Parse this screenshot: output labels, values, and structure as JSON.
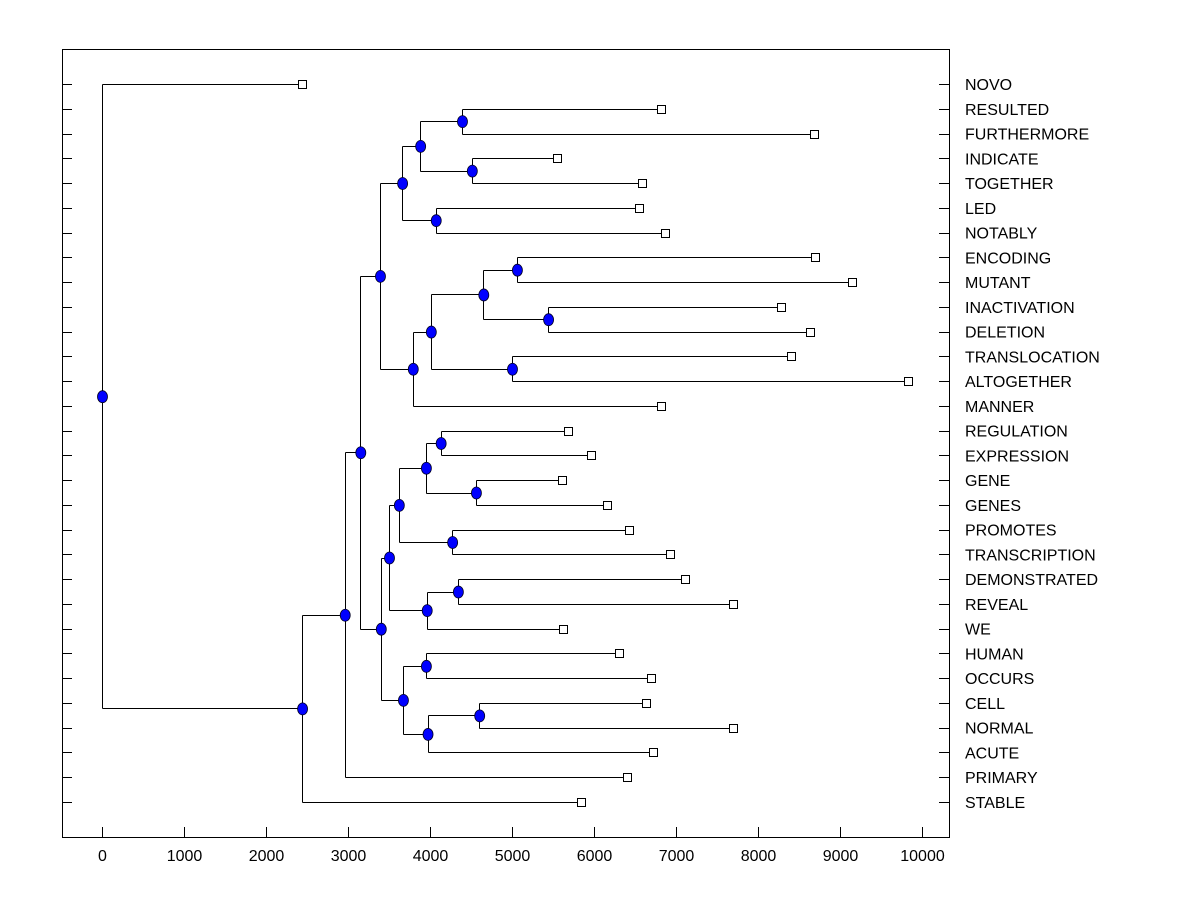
{
  "chart_data": {
    "type": "dendrogram",
    "orientation": "left-to-right",
    "xlim": [
      -500,
      10300
    ],
    "x_ticks": [
      "0",
      "1000",
      "2000",
      "3000",
      "4000",
      "5000",
      "6000",
      "7000",
      "8000",
      "9000",
      "10000"
    ],
    "x_tick_values": [
      0,
      1000,
      2000,
      3000,
      4000,
      5000,
      6000,
      7000,
      8000,
      9000,
      10000
    ],
    "grid": false,
    "node_color": "#0000ff",
    "leaf_marker": "white square",
    "tree": {
      "h": 0,
      "children": [
        {
          "label": "NOVO",
          "x": 2440
        },
        {
          "h": 2440,
          "children": [
            {
              "h": 2960,
              "children": [
                {
                  "h": 3150,
                  "children": [
                    {
                      "h": 3390,
                      "children": [
                        {
                          "h": 3660,
                          "children": [
                            {
                              "h": 3880,
                              "children": [
                                {
                                  "h": 4390,
                                  "children": [
                                    {
                                      "label": "RESULTED",
                                      "x": 6820
                                    },
                                    {
                                      "label": "FURTHERMORE",
                                      "x": 8680
                                    }
                                  ]
                                },
                                {
                                  "h": 4510,
                                  "children": [
                                    {
                                      "label": "INDICATE",
                                      "x": 5550
                                    },
                                    {
                                      "label": "TOGETHER",
                                      "x": 6590
                                    }
                                  ]
                                }
                              ]
                            },
                            {
                              "h": 4070,
                              "children": [
                                {
                                  "label": "LED",
                                  "x": 6550
                                },
                                {
                                  "label": "NOTABLY",
                                  "x": 6870
                                }
                              ]
                            }
                          ]
                        },
                        {
                          "h": 3790,
                          "children": [
                            {
                              "h": 4010,
                              "children": [
                                {
                                  "h": 4650,
                                  "children": [
                                    {
                                      "h": 5060,
                                      "children": [
                                        {
                                          "label": "ENCODING",
                                          "x": 8700
                                        },
                                        {
                                          "label": "MUTANT",
                                          "x": 9150
                                        }
                                      ]
                                    },
                                    {
                                      "h": 5440,
                                      "children": [
                                        {
                                          "label": "INACTIVATION",
                                          "x": 8280
                                        },
                                        {
                                          "label": "DELETION",
                                          "x": 8630
                                        }
                                      ]
                                    }
                                  ]
                                },
                                {
                                  "h": 5000,
                                  "children": [
                                    {
                                      "label": "TRANSLOCATION",
                                      "x": 8400
                                    },
                                    {
                                      "label": "ALTOGETHER",
                                      "x": 9830
                                    }
                                  ]
                                }
                              ]
                            },
                            {
                              "label": "MANNER",
                              "x": 6820
                            }
                          ]
                        }
                      ]
                    },
                    {
                      "h": 3400,
                      "children": [
                        {
                          "h": 3500,
                          "children": [
                            {
                              "h": 3620,
                              "children": [
                                {
                                  "h": 3950,
                                  "children": [
                                    {
                                      "h": 4130,
                                      "children": [
                                        {
                                          "label": "REGULATION",
                                          "x": 5680
                                        },
                                        {
                                          "label": "EXPRESSION",
                                          "x": 5960
                                        }
                                      ]
                                    },
                                    {
                                      "h": 4560,
                                      "children": [
                                        {
                                          "label": "GENE",
                                          "x": 5610
                                        },
                                        {
                                          "label": "GENES",
                                          "x": 6160
                                        }
                                      ]
                                    }
                                  ]
                                },
                                {
                                  "h": 4270,
                                  "children": [
                                    {
                                      "label": "PROMOTES",
                                      "x": 6430
                                    },
                                    {
                                      "label": "TRANSCRIPTION",
                                      "x": 6930
                                    }
                                  ]
                                }
                              ]
                            },
                            {
                              "h": 3960,
                              "children": [
                                {
                                  "h": 4340,
                                  "children": [
                                    {
                                      "label": "DEMONSTRATED",
                                      "x": 7110
                                    },
                                    {
                                      "label": "REVEAL",
                                      "x": 7700
                                    }
                                  ]
                                },
                                {
                                  "label": "WE",
                                  "x": 5620
                                }
                              ]
                            }
                          ]
                        },
                        {
                          "h": 3670,
                          "children": [
                            {
                              "h": 3950,
                              "children": [
                                {
                                  "label": "HUMAN",
                                  "x": 6300
                                },
                                {
                                  "label": "OCCURS",
                                  "x": 6700
                                }
                              ]
                            },
                            {
                              "h": 3970,
                              "children": [
                                {
                                  "h": 4600,
                                  "children": [
                                    {
                                      "label": "CELL",
                                      "x": 6630
                                    },
                                    {
                                      "label": "NORMAL",
                                      "x": 7700
                                    }
                                  ]
                                },
                                {
                                  "label": "ACUTE",
                                  "x": 6720
                                }
                              ]
                            }
                          ]
                        }
                      ]
                    }
                  ]
                },
                {
                  "label": "PRIMARY",
                  "x": 6400
                }
              ]
            },
            {
              "label": "STABLE",
              "x": 5840
            }
          ]
        }
      ]
    }
  }
}
